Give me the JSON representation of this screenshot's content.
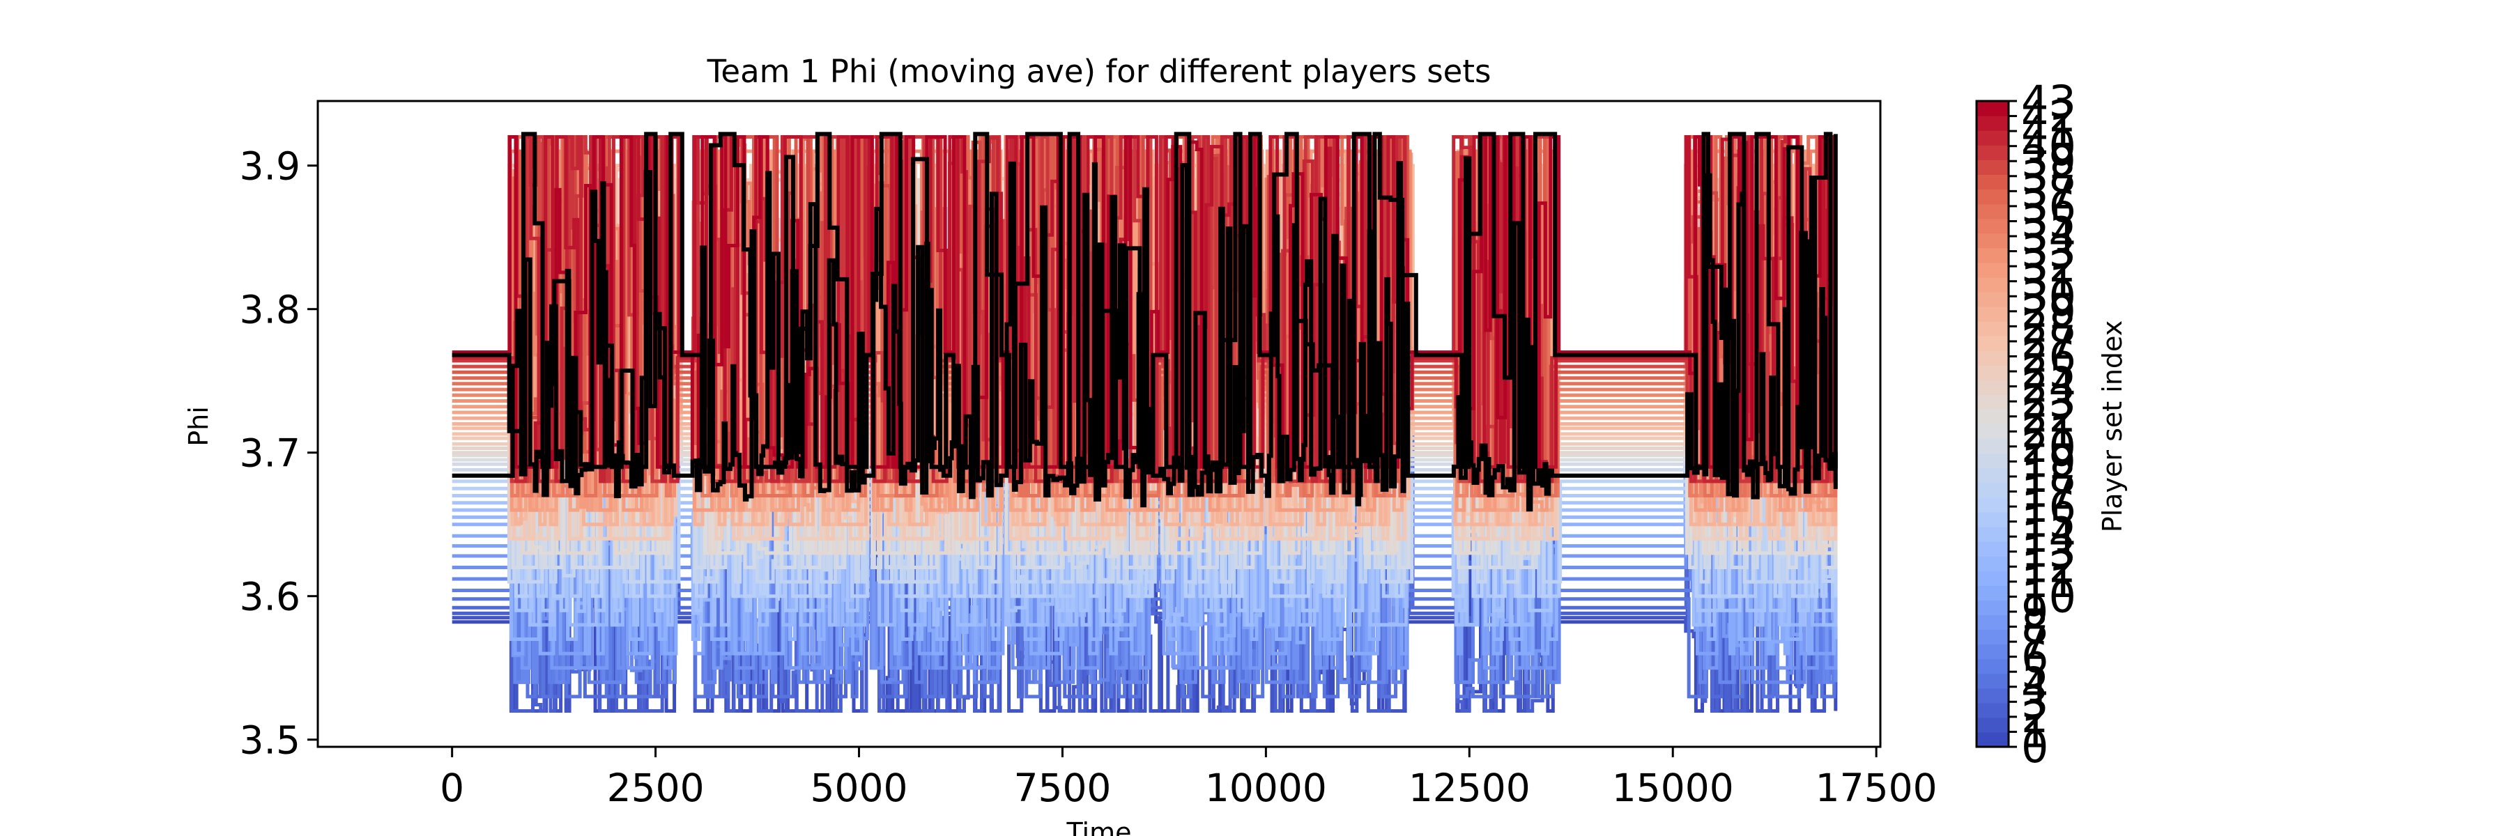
{
  "chart_data": {
    "type": "line",
    "title": "Team 1 Phi (moving ave) for different players sets",
    "xlabel": "Time",
    "ylabel": "Phi",
    "xlim": [
      -1650,
      17550
    ],
    "ylim": [
      3.495,
      3.945
    ],
    "x_ticks": [
      0,
      2500,
      5000,
      7500,
      10000,
      12500,
      15000,
      17500
    ],
    "x_tick_labels": [
      "0",
      "2500",
      "5000",
      "7500",
      "10000",
      "12500",
      "15000",
      "17500"
    ],
    "y_ticks": [
      3.5,
      3.6,
      3.7,
      3.8,
      3.9
    ],
    "y_tick_labels": [
      "3.5",
      "3.6",
      "3.7",
      "3.8",
      "3.9"
    ],
    "grid": false,
    "colorbar": {
      "label": "Player set index",
      "colormap": "coolwarm",
      "min": 0,
      "max": 43,
      "tick_values": [
        0,
        1,
        2,
        3,
        4,
        5,
        6,
        7,
        8,
        9,
        10,
        11,
        12,
        13,
        14,
        15,
        16,
        17,
        18,
        19,
        20,
        21,
        22,
        23,
        24,
        25,
        26,
        27,
        28,
        29,
        30,
        31,
        32,
        33,
        34,
        35,
        36,
        37,
        38,
        39,
        40,
        41,
        42,
        43
      ],
      "tick_labels": [
        "0",
        "1",
        "2",
        "3",
        "4",
        "5",
        "6",
        "7",
        "8",
        "9",
        "10",
        "11",
        "12",
        "13",
        "14",
        "15",
        "16",
        "17",
        "18",
        "19",
        "20",
        "21",
        "22",
        "23",
        "24",
        "25",
        "26",
        "27",
        "28",
        "29",
        "30",
        "31",
        "32",
        "33",
        "34",
        "35",
        "36",
        "37",
        "38",
        "39",
        "40",
        "41",
        "42",
        "43"
      ]
    },
    "series_count": 44,
    "x_range": [
      0,
      17000
    ],
    "highlight_color": "#000000",
    "series_levels": {
      "baseline": [
        3.582,
        3.585,
        3.588,
        3.592,
        3.598,
        3.604,
        3.612,
        3.62,
        3.628,
        3.635,
        3.642,
        3.65,
        3.655,
        3.66,
        3.665,
        3.67,
        3.675,
        3.68,
        3.684,
        3.688,
        3.692,
        3.695,
        3.698,
        3.7,
        3.703,
        3.706,
        3.71,
        3.713,
        3.717,
        3.72,
        3.724,
        3.728,
        3.732,
        3.736,
        3.74,
        3.744,
        3.748,
        3.752,
        3.756,
        3.76,
        3.764,
        3.766,
        3.768,
        3.77
      ],
      "low": [
        3.52,
        3.52,
        3.52,
        3.53,
        3.53,
        3.54,
        3.54,
        3.55,
        3.55,
        3.56,
        3.56,
        3.57,
        3.58,
        3.58,
        3.59,
        3.6,
        3.6,
        3.61,
        3.61,
        3.62,
        3.62,
        3.63,
        3.63,
        3.63,
        3.64,
        3.64,
        3.64,
        3.65,
        3.65,
        3.65,
        3.66,
        3.66,
        3.66,
        3.67,
        3.67,
        3.67,
        3.67,
        3.68,
        3.68,
        3.68,
        3.68,
        3.68,
        3.69,
        3.69
      ],
      "high": [
        3.72,
        3.73,
        3.74,
        3.75,
        3.76,
        3.77,
        3.78,
        3.79,
        3.8,
        3.81,
        3.82,
        3.83,
        3.84,
        3.84,
        3.85,
        3.86,
        3.86,
        3.87,
        3.87,
        3.88,
        3.88,
        3.88,
        3.89,
        3.89,
        3.89,
        3.9,
        3.9,
        3.9,
        3.9,
        3.9,
        3.91,
        3.91,
        3.91,
        3.91,
        3.91,
        3.92,
        3.92,
        3.92,
        3.92,
        3.92,
        3.92,
        3.92,
        3.92,
        3.92
      ]
    },
    "highlight_series": [
      {
        "baseline": 3.768,
        "low": 3.69,
        "high": 3.922,
        "style": "step"
      },
      {
        "baseline": 3.684,
        "low": 3.66,
        "high": 3.905,
        "style": "noisy"
      }
    ],
    "active_segments": [
      [
        700,
        2700
      ],
      [
        2950,
        5050
      ],
      [
        5150,
        6000
      ],
      [
        6100,
        6700
      ],
      [
        6800,
        8600
      ],
      [
        8700,
        9900
      ],
      [
        10000,
        11700
      ],
      [
        12300,
        13500
      ],
      [
        15150,
        17000
      ]
    ]
  }
}
